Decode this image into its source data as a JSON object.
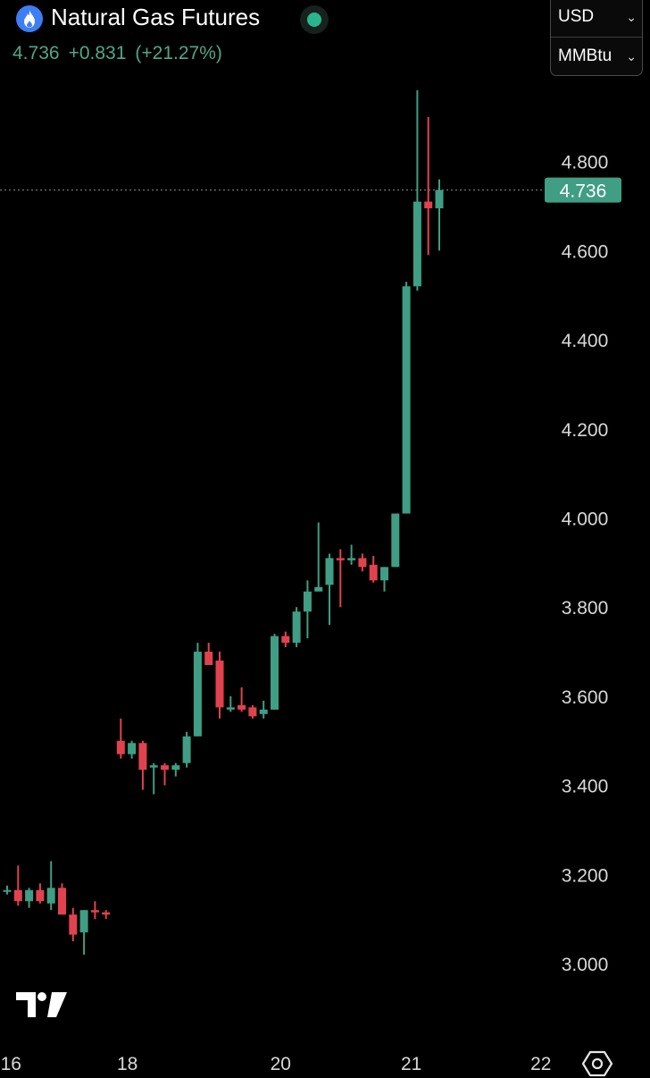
{
  "header": {
    "title": "Natural Gas Futures",
    "price": "4.736",
    "change": "+0.831",
    "change_pct": "(+21.27%)",
    "currency": "USD",
    "unit": "MMBtu",
    "icon": "flame-icon"
  },
  "colors": {
    "background": "#000000",
    "up": "#3f9e83",
    "down": "#e0434e",
    "axis_text": "#d9d9d9",
    "quote_text": "#4fa987"
  },
  "chart_data": {
    "type": "candlestick",
    "last_price": 4.736,
    "last_price_label": "4.736",
    "ylim": [
      2.94,
      4.97
    ],
    "y_ticks": [
      {
        "value": 3.0,
        "label": "3.000"
      },
      {
        "value": 3.2,
        "label": "3.200"
      },
      {
        "value": 3.4,
        "label": "3.400"
      },
      {
        "value": 3.6,
        "label": "3.600"
      },
      {
        "value": 3.8,
        "label": "3.800"
      },
      {
        "value": 4.0,
        "label": "4.000"
      },
      {
        "value": 4.2,
        "label": "4.200"
      },
      {
        "value": 4.4,
        "label": "4.400"
      },
      {
        "value": 4.6,
        "label": "4.600"
      },
      {
        "value": 4.8,
        "label": "4.800"
      }
    ],
    "x_ticks": [
      {
        "pos": 0.35,
        "label": "16"
      },
      {
        "pos": 10.95,
        "label": "18"
      },
      {
        "pos": 24.9,
        "label": "20"
      },
      {
        "pos": 36.8,
        "label": "21"
      },
      {
        "pos": 48.6,
        "label": "22"
      }
    ],
    "candles": [
      {
        "i": 0,
        "o": 3.165,
        "h": 3.175,
        "l": 3.155,
        "c": 3.165
      },
      {
        "i": 1,
        "o": 3.165,
        "h": 3.22,
        "l": 3.13,
        "c": 3.14
      },
      {
        "i": 2,
        "o": 3.14,
        "h": 3.17,
        "l": 3.125,
        "c": 3.165
      },
      {
        "i": 3,
        "o": 3.165,
        "h": 3.18,
        "l": 3.135,
        "c": 3.14
      },
      {
        "i": 4,
        "o": 3.135,
        "h": 3.23,
        "l": 3.12,
        "c": 3.17
      },
      {
        "i": 5,
        "o": 3.17,
        "h": 3.18,
        "l": 3.11,
        "c": 3.11
      },
      {
        "i": 6,
        "o": 3.11,
        "h": 3.125,
        "l": 3.05,
        "c": 3.065
      },
      {
        "i": 7,
        "o": 3.07,
        "h": 3.12,
        "l": 3.02,
        "c": 3.12
      },
      {
        "i": 8,
        "o": 3.12,
        "h": 3.14,
        "l": 3.1,
        "c": 3.115
      },
      {
        "i": 9,
        "o": 3.115,
        "h": 3.12,
        "l": 3.1,
        "c": 3.11
      },
      {
        "i": 10.35,
        "o": 3.5,
        "h": 3.55,
        "l": 3.46,
        "c": 3.47
      },
      {
        "i": 11.35,
        "o": 3.47,
        "h": 3.5,
        "l": 3.46,
        "c": 3.495
      },
      {
        "i": 12.35,
        "o": 3.495,
        "h": 3.5,
        "l": 3.39,
        "c": 3.435
      },
      {
        "i": 13.35,
        "o": 3.44,
        "h": 3.45,
        "l": 3.38,
        "c": 3.445
      },
      {
        "i": 14.35,
        "o": 3.445,
        "h": 3.45,
        "l": 3.4,
        "c": 3.435
      },
      {
        "i": 15.35,
        "o": 3.435,
        "h": 3.45,
        "l": 3.42,
        "c": 3.445
      },
      {
        "i": 16.35,
        "o": 3.45,
        "h": 3.52,
        "l": 3.44,
        "c": 3.51
      },
      {
        "i": 17.35,
        "o": 3.51,
        "h": 3.72,
        "l": 3.51,
        "c": 3.7
      },
      {
        "i": 18.35,
        "o": 3.7,
        "h": 3.72,
        "l": 3.67,
        "c": 3.67
      },
      {
        "i": 19.35,
        "o": 3.68,
        "h": 3.7,
        "l": 3.55,
        "c": 3.575
      },
      {
        "i": 20.35,
        "o": 3.57,
        "h": 3.6,
        "l": 3.565,
        "c": 3.575
      },
      {
        "i": 21.35,
        "o": 3.58,
        "h": 3.62,
        "l": 3.565,
        "c": 3.57
      },
      {
        "i": 22.35,
        "o": 3.575,
        "h": 3.58,
        "l": 3.55,
        "c": 3.555
      },
      {
        "i": 23.35,
        "o": 3.56,
        "h": 3.59,
        "l": 3.55,
        "c": 3.57
      },
      {
        "i": 24.35,
        "o": 3.57,
        "h": 3.74,
        "l": 3.57,
        "c": 3.735
      },
      {
        "i": 25.35,
        "o": 3.735,
        "h": 3.745,
        "l": 3.71,
        "c": 3.72
      },
      {
        "i": 26.35,
        "o": 3.72,
        "h": 3.8,
        "l": 3.71,
        "c": 3.79
      },
      {
        "i": 27.35,
        "o": 3.79,
        "h": 3.86,
        "l": 3.73,
        "c": 3.835
      },
      {
        "i": 28.35,
        "o": 3.835,
        "h": 3.99,
        "l": 3.84,
        "c": 3.845
      },
      {
        "i": 29.35,
        "o": 3.85,
        "h": 3.92,
        "l": 3.76,
        "c": 3.91
      },
      {
        "i": 30.35,
        "o": 3.91,
        "h": 3.93,
        "l": 3.8,
        "c": 3.905
      },
      {
        "i": 31.35,
        "o": 3.905,
        "h": 3.94,
        "l": 3.895,
        "c": 3.91
      },
      {
        "i": 32.35,
        "o": 3.91,
        "h": 3.92,
        "l": 3.88,
        "c": 3.89
      },
      {
        "i": 33.35,
        "o": 3.895,
        "h": 3.915,
        "l": 3.855,
        "c": 3.86
      },
      {
        "i": 34.35,
        "o": 3.86,
        "h": 3.89,
        "l": 3.835,
        "c": 3.89
      },
      {
        "i": 35.35,
        "o": 3.89,
        "h": 4.01,
        "l": 3.89,
        "c": 4.01
      },
      {
        "i": 36.35,
        "o": 4.01,
        "h": 4.53,
        "l": 4.01,
        "c": 4.52
      },
      {
        "i": 37.35,
        "o": 4.52,
        "h": 4.96,
        "l": 4.51,
        "c": 4.71
      },
      {
        "i": 38.35,
        "o": 4.71,
        "h": 4.9,
        "l": 4.59,
        "c": 4.695
      },
      {
        "i": 39.35,
        "o": 4.695,
        "h": 4.76,
        "l": 4.6,
        "c": 4.736
      }
    ]
  }
}
